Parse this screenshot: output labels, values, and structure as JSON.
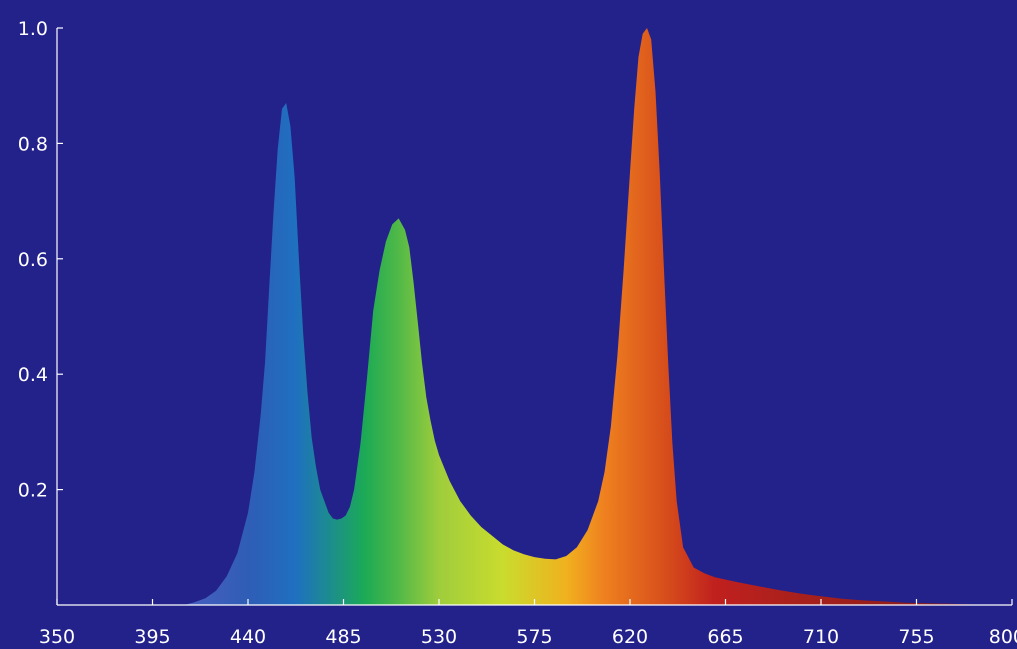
{
  "style": {
    "background": "#23218a",
    "axis_color": "#ffffff",
    "text_color": "#ffffff",
    "spectrum_gradient": [
      {
        "nm": 410,
        "color": "#4a5fc0"
      },
      {
        "nm": 440,
        "color": "#2f5db6"
      },
      {
        "nm": 462,
        "color": "#1f6fc0"
      },
      {
        "nm": 480,
        "color": "#1c8f8a"
      },
      {
        "nm": 495,
        "color": "#1caa55"
      },
      {
        "nm": 510,
        "color": "#4db848"
      },
      {
        "nm": 530,
        "color": "#9fcd3c"
      },
      {
        "nm": 560,
        "color": "#c9dc2e"
      },
      {
        "nm": 590,
        "color": "#f0b11f"
      },
      {
        "nm": 608,
        "color": "#ef801f"
      },
      {
        "nm": 640,
        "color": "#d4481b"
      },
      {
        "nm": 660,
        "color": "#c0201e"
      },
      {
        "nm": 700,
        "color": "#a8201c"
      },
      {
        "nm": 800,
        "color": "#7a1a1a"
      }
    ]
  },
  "chart_data": {
    "type": "area",
    "title": "",
    "xlabel": "",
    "ylabel": "",
    "xlim": [
      350,
      800
    ],
    "ylim": [
      0,
      1.0
    ],
    "grid": false,
    "x_ticks": [
      350,
      395,
      440,
      485,
      530,
      575,
      620,
      665,
      710,
      755,
      800
    ],
    "x_tick_labels": [
      "350",
      "395",
      "440",
      "485",
      "530",
      "575",
      "620",
      "665",
      "710",
      "755",
      "800"
    ],
    "y_ticks": [
      0.2,
      0.4,
      0.6,
      0.8,
      1.0
    ],
    "y_tick_labels": [
      "0.2",
      "0.4",
      "0.6",
      "0.8",
      "1.0"
    ],
    "series": [
      {
        "x": [
          410,
          415,
          420,
          425,
          430,
          435,
          440,
          443,
          446,
          448,
          450,
          452,
          454,
          456,
          458,
          460,
          462,
          464,
          466,
          468,
          470,
          472,
          474,
          476,
          478,
          480,
          482,
          484,
          486,
          488,
          490,
          493,
          496,
          499,
          502,
          505,
          508,
          511,
          514,
          516,
          518,
          520,
          522,
          524,
          526,
          528,
          530,
          535,
          540,
          545,
          550,
          555,
          560,
          565,
          570,
          575,
          580,
          585,
          590,
          595,
          600,
          605,
          608,
          611,
          614,
          617,
          620,
          622,
          624,
          626,
          628,
          630,
          632,
          634,
          636,
          638,
          640,
          642,
          645,
          650,
          655,
          660,
          670,
          680,
          690,
          700,
          710,
          720,
          730,
          740,
          750,
          760,
          770,
          780,
          790,
          800
        ],
        "y": [
          0.0,
          0.005,
          0.012,
          0.025,
          0.05,
          0.09,
          0.16,
          0.23,
          0.33,
          0.42,
          0.55,
          0.68,
          0.79,
          0.86,
          0.87,
          0.83,
          0.74,
          0.6,
          0.47,
          0.37,
          0.29,
          0.24,
          0.2,
          0.18,
          0.16,
          0.15,
          0.148,
          0.15,
          0.155,
          0.17,
          0.2,
          0.28,
          0.39,
          0.51,
          0.58,
          0.63,
          0.66,
          0.67,
          0.65,
          0.62,
          0.56,
          0.49,
          0.42,
          0.36,
          0.32,
          0.285,
          0.26,
          0.215,
          0.18,
          0.155,
          0.135,
          0.12,
          0.105,
          0.095,
          0.088,
          0.083,
          0.08,
          0.079,
          0.085,
          0.1,
          0.13,
          0.18,
          0.23,
          0.31,
          0.43,
          0.58,
          0.75,
          0.86,
          0.95,
          0.99,
          1.0,
          0.98,
          0.89,
          0.75,
          0.58,
          0.42,
          0.28,
          0.18,
          0.1,
          0.065,
          0.055,
          0.048,
          0.04,
          0.033,
          0.026,
          0.02,
          0.015,
          0.011,
          0.008,
          0.006,
          0.004,
          0.003,
          0.002,
          0.001,
          0.0,
          0.0
        ]
      }
    ]
  }
}
